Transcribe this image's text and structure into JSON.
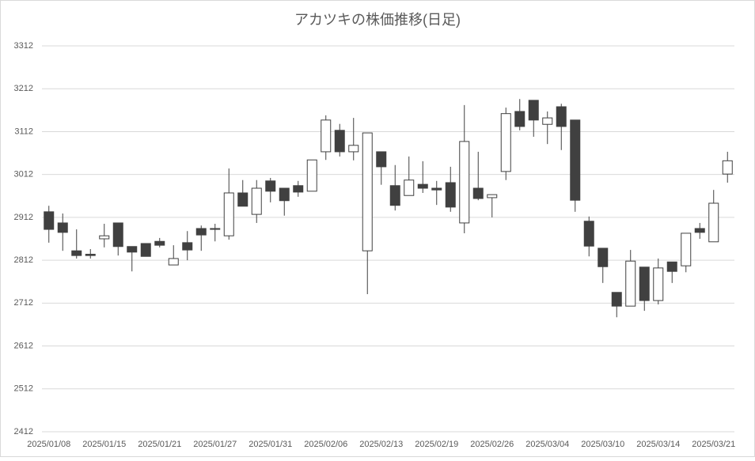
{
  "chart_data": {
    "type": "candlestick",
    "title": "アカツキの株価推移(日足)",
    "categories": [
      "2025/01/08",
      null,
      null,
      null,
      "2025/01/15",
      null,
      null,
      null,
      "2025/01/21",
      null,
      null,
      null,
      "2025/01/27",
      null,
      null,
      null,
      "2025/01/31",
      null,
      null,
      null,
      "2025/02/06",
      null,
      null,
      null,
      "2025/02/13",
      null,
      null,
      null,
      "2025/02/19",
      null,
      null,
      null,
      "2025/02/26",
      null,
      null,
      null,
      "2025/03/04",
      null,
      null,
      null,
      "2025/03/10",
      null,
      null,
      null,
      "2025/03/14",
      null,
      null,
      null,
      "2025/03/21",
      null
    ],
    "open": [
      2925,
      2899,
      2834,
      2826,
      2862,
      2899,
      2844,
      2851,
      2856,
      2801,
      2853,
      2886,
      2886,
      2869,
      2969,
      2919,
      2997,
      2980,
      2986,
      2973,
      3065,
      3115,
      3065,
      2834,
      3065,
      2986,
      2963,
      2989,
      2980,
      2993,
      2899,
      2980,
      2958,
      3019,
      3159,
      3185,
      3129,
      3170,
      3139,
      2903,
      2840,
      2737,
      2705,
      2796,
      2718,
      2808,
      2799,
      2886,
      2855,
      3013
    ],
    "high": [
      2939,
      2921,
      2884,
      2838,
      2897,
      2899,
      2844,
      2851,
      2864,
      2847,
      2880,
      2893,
      2897,
      3026,
      2999,
      2999,
      3004,
      2980,
      2997,
      3046,
      3150,
      3130,
      3144,
      3109,
      3065,
      3034,
      3054,
      3043,
      2997,
      3030,
      3174,
      3065,
      2965,
      3168,
      3188,
      3185,
      3159,
      3177,
      3139,
      2914,
      2840,
      2737,
      2836,
      2796,
      2816,
      2808,
      2875,
      2899,
      2976,
      3065
    ],
    "low": [
      2853,
      2834,
      2816,
      2816,
      2842,
      2823,
      2786,
      2821,
      2842,
      2801,
      2812,
      2834,
      2856,
      2860,
      2938,
      2899,
      2947,
      2916,
      2960,
      2973,
      3046,
      3054,
      3045,
      2733,
      2988,
      2928,
      2963,
      2969,
      2941,
      2925,
      2875,
      2952,
      2912,
      2999,
      3115,
      3100,
      3083,
      3069,
      2925,
      2821,
      2759,
      2679,
      2705,
      2694,
      2709,
      2759,
      2784,
      2862,
      2855,
      2993
    ],
    "close": [
      2884,
      2877,
      2823,
      2823,
      2869,
      2844,
      2831,
      2821,
      2847,
      2816,
      2836,
      2871,
      2884,
      2969,
      2938,
      2980,
      2973,
      2951,
      2971,
      3046,
      3139,
      3065,
      3080,
      3109,
      3030,
      2940,
      2999,
      2980,
      2976,
      2936,
      3089,
      2956,
      2965,
      3154,
      3124,
      3139,
      3144,
      3124,
      2952,
      2845,
      2797,
      2705,
      2810,
      2718,
      2794,
      2786,
      2875,
      2877,
      2945,
      3044
    ],
    "up_color": "#ffffff",
    "down_color": "#404040",
    "ylim": [
      2412,
      3312
    ],
    "yticks": [
      2412,
      2512,
      2612,
      2712,
      2812,
      2912,
      3012,
      3112,
      3212,
      3312
    ],
    "grid": true
  }
}
